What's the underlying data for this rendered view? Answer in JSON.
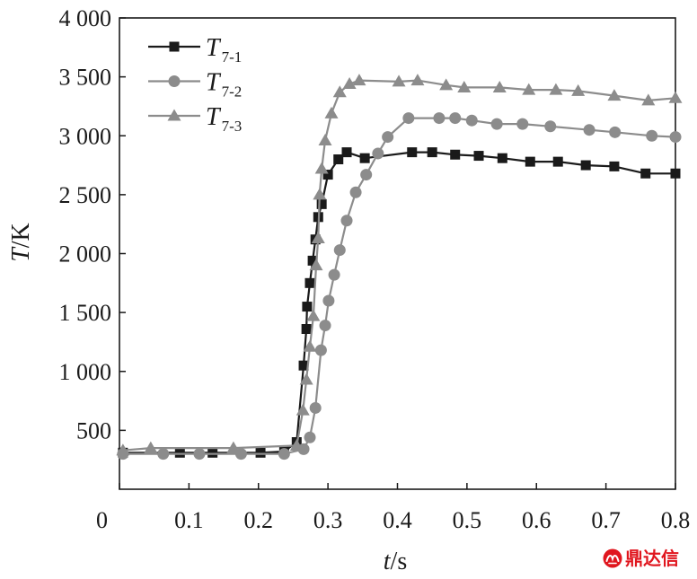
{
  "chart_data": {
    "type": "line",
    "xlabel": "t/s",
    "ylabel": "T/K",
    "xlim": [
      0,
      0.8
    ],
    "ylim": [
      0,
      4000
    ],
    "xticks": [
      0,
      0.1,
      0.2,
      0.3,
      0.4,
      0.5,
      0.6,
      0.7,
      0.8
    ],
    "xtick_labels": [
      "0",
      "0.1",
      "0.2",
      "0.3",
      "0.4",
      "0.5",
      "0.6",
      "0.7",
      "0.8"
    ],
    "yticks": [
      500,
      1000,
      1500,
      2000,
      2500,
      3000,
      3500,
      4000
    ],
    "ytick_labels": [
      "500",
      "1 000",
      "1 500",
      "2 000",
      "2 500",
      "3 000",
      "3 500",
      "4 000"
    ],
    "grid": false,
    "legend": "top-left",
    "series": [
      {
        "name": "T7-1",
        "color": "#1a1a1a",
        "marker": "square",
        "x": [
          0.005,
          0.087,
          0.134,
          0.203,
          0.237,
          0.255,
          0.265,
          0.269,
          0.27,
          0.274,
          0.278,
          0.282,
          0.286,
          0.291,
          0.3,
          0.315,
          0.327,
          0.353,
          0.421,
          0.45,
          0.483,
          0.517,
          0.551,
          0.591,
          0.631,
          0.671,
          0.712,
          0.757,
          0.8
        ],
        "y": [
          310,
          310,
          310,
          310,
          320,
          400,
          1050,
          1360,
          1550,
          1750,
          1940,
          2120,
          2310,
          2420,
          2670,
          2800,
          2860,
          2810,
          2860,
          2860,
          2840,
          2830,
          2810,
          2780,
          2780,
          2750,
          2740,
          2680,
          2680
        ]
      },
      {
        "name": "T7-2",
        "color": "#8c8c8c",
        "marker": "circle",
        "x": [
          0.005,
          0.063,
          0.115,
          0.175,
          0.237,
          0.265,
          0.274,
          0.282,
          0.29,
          0.296,
          0.301,
          0.309,
          0.317,
          0.327,
          0.34,
          0.355,
          0.372,
          0.386,
          0.416,
          0.46,
          0.483,
          0.507,
          0.543,
          0.58,
          0.62,
          0.676,
          0.713,
          0.766,
          0.8
        ],
        "y": [
          300,
          300,
          300,
          300,
          300,
          340,
          440,
          690,
          1180,
          1390,
          1600,
          1820,
          2030,
          2280,
          2520,
          2670,
          2850,
          2990,
          3150,
          3150,
          3150,
          3130,
          3100,
          3100,
          3080,
          3050,
          3030,
          3000,
          2990
        ]
      },
      {
        "name": "T7-3",
        "color": "#8c8c8c",
        "marker": "triangle",
        "x": [
          0.005,
          0.045,
          0.164,
          0.255,
          0.264,
          0.269,
          0.274,
          0.279,
          0.283,
          0.286,
          0.288,
          0.291,
          0.296,
          0.305,
          0.317,
          0.331,
          0.345,
          0.402,
          0.429,
          0.47,
          0.496,
          0.547,
          0.589,
          0.628,
          0.66,
          0.712,
          0.761,
          0.8
        ],
        "y": [
          330,
          350,
          350,
          370,
          670,
          930,
          1210,
          1470,
          1900,
          2130,
          2500,
          2720,
          2960,
          3190,
          3370,
          3440,
          3470,
          3460,
          3470,
          3430,
          3410,
          3410,
          3390,
          3390,
          3380,
          3340,
          3300,
          3320
        ]
      }
    ]
  },
  "watermark": {
    "text": "鼎达信",
    "color": "#e0161e"
  }
}
